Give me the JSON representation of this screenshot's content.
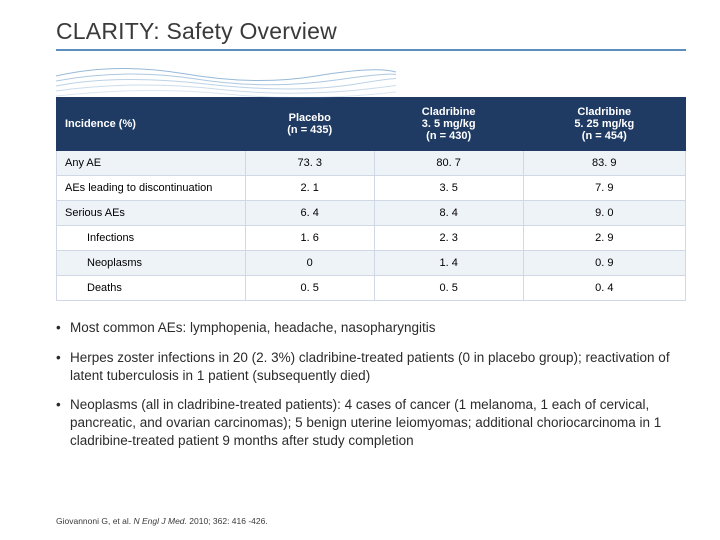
{
  "title": "CLARITY: Safety Overview",
  "table": {
    "type": "table",
    "header_bg": "#1f3a63",
    "header_fg": "#ffffff",
    "row_odd_bg": "#eef3f8",
    "row_even_bg": "#ffffff",
    "border_color": "#cfd8e4",
    "columns": [
      {
        "label": "Incidence (%)",
        "sub": ""
      },
      {
        "label": "Placebo",
        "sub": "(n = 435)"
      },
      {
        "label": "Cladribine\n3. 5 mg/kg",
        "sub": "(n = 430)"
      },
      {
        "label": "Cladribine\n5. 25 mg/kg",
        "sub": "(n = 454)"
      }
    ],
    "rows": [
      {
        "label": "Any AE",
        "indent": false,
        "vals": [
          "73. 3",
          "80. 7",
          "83. 9"
        ]
      },
      {
        "label": "AEs leading to discontinuation",
        "indent": false,
        "vals": [
          "2. 1",
          "3. 5",
          "7. 9"
        ]
      },
      {
        "label": "Serious AEs",
        "indent": false,
        "vals": [
          "6. 4",
          "8. 4",
          "9. 0"
        ]
      },
      {
        "label": "Infections",
        "indent": true,
        "vals": [
          "1. 6",
          "2. 3",
          "2. 9"
        ]
      },
      {
        "label": "Neoplasms",
        "indent": true,
        "vals": [
          "0",
          "1. 4",
          "0. 9"
        ]
      },
      {
        "label": "Deaths",
        "indent": true,
        "vals": [
          "0. 5",
          "0. 5",
          "0. 4"
        ]
      }
    ]
  },
  "bullets": [
    "Most common AEs: lymphopenia, headache, nasopharyngitis",
    "Herpes zoster infections in 20 (2. 3%) cladribine-treated patients (0 in placebo group); reactivation of latent tuberculosis in 1 patient (subsequently died)",
    "Neoplasms (all in cladribine-treated patients): 4 cases of cancer (1 melanoma, 1 each of cervical, pancreatic, and ovarian carcinomas); 5 benign uterine leiomyomas; additional choriocarcinoma in 1 cladribine-treated patient 9 months after study completion"
  ],
  "citation": {
    "authors": "Giovannoni G, et al.",
    "journal": "N Engl J Med.",
    "rest": " 2010; 362: 416 -426."
  },
  "styling": {
    "title_color": "#3a3a3a",
    "underline_color": "#5c8fbf",
    "wave_stroke": "#6a9bc7",
    "title_fontsize": 23,
    "body_fontsize": 13.5,
    "table_fontsize": 11,
    "citation_fontsize": 8.5
  }
}
